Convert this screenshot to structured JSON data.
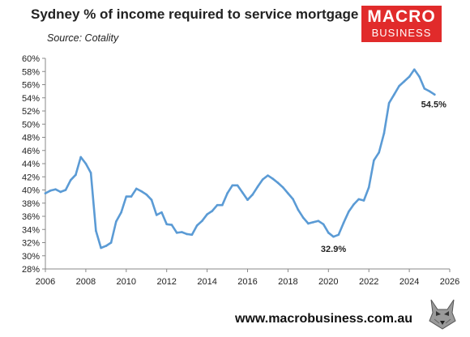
{
  "header": {
    "title": "Sydney % of income required to service mortgage",
    "source": "Source: Cotality"
  },
  "logo": {
    "line1": "MACRO",
    "line2": "BUSINESS",
    "color": "#e12b2b"
  },
  "footer": {
    "url": "www.macrobusiness.com.au"
  },
  "colors": {
    "series": "#5b9bd5",
    "axis": "#888888",
    "text": "#222222"
  },
  "chart_data": {
    "type": "line",
    "title": "Sydney % of income required to service mortgage",
    "xlabel": "",
    "ylabel": "",
    "xlim": [
      2006,
      2026
    ],
    "ylim": [
      28,
      60
    ],
    "x_ticks": [
      "2006",
      "2008",
      "2010",
      "2012",
      "2014",
      "2016",
      "2018",
      "2020",
      "2022",
      "2024",
      "2026"
    ],
    "y_ticks": [
      "28%",
      "30%",
      "32%",
      "34%",
      "36%",
      "38%",
      "40%",
      "42%",
      "44%",
      "46%",
      "48%",
      "50%",
      "52%",
      "54%",
      "56%",
      "58%",
      "60%"
    ],
    "grid": false,
    "legend": "none",
    "series": [
      {
        "x": [
          2006.0,
          2006.25,
          2006.5,
          2006.75,
          2007.0,
          2007.25,
          2007.5,
          2007.75,
          2008.0,
          2008.25,
          2008.5,
          2008.75,
          2009.0,
          2009.25,
          2009.5,
          2009.75,
          2010.0,
          2010.25,
          2010.5,
          2010.75,
          2011.0,
          2011.25,
          2011.5,
          2011.75,
          2012.0,
          2012.25,
          2012.5,
          2012.75,
          2013.0,
          2013.25,
          2013.5,
          2013.75,
          2014.0,
          2014.25,
          2014.5,
          2014.75,
          2015.0,
          2015.25,
          2015.5,
          2015.75,
          2016.0,
          2016.25,
          2016.5,
          2016.75,
          2017.0,
          2017.25,
          2017.5,
          2017.75,
          2018.0,
          2018.25,
          2018.5,
          2018.75,
          2019.0,
          2019.25,
          2019.5,
          2019.75,
          2020.0,
          2020.25,
          2020.5,
          2020.75,
          2021.0,
          2021.25,
          2021.5,
          2021.75,
          2022.0,
          2022.25,
          2022.5,
          2022.75,
          2023.0,
          2023.25,
          2023.5,
          2023.75,
          2024.0,
          2024.25,
          2024.5,
          2024.75,
          2025.0,
          2025.25
        ],
        "values": [
          39.5,
          39.9,
          40.1,
          39.7,
          40.0,
          41.5,
          42.3,
          45.0,
          44.0,
          42.6,
          33.8,
          31.2,
          31.5,
          32.0,
          35.2,
          36.6,
          39.0,
          39.0,
          40.2,
          39.8,
          39.3,
          38.5,
          36.2,
          36.6,
          34.8,
          34.7,
          33.5,
          33.6,
          33.3,
          33.2,
          34.6,
          35.3,
          36.3,
          36.8,
          37.7,
          37.7,
          39.5,
          40.7,
          40.7,
          39.6,
          38.5,
          39.3,
          40.5,
          41.6,
          42.2,
          41.7,
          41.1,
          40.4,
          39.5,
          38.6,
          37.0,
          35.8,
          34.9,
          35.1,
          35.3,
          34.8,
          33.5,
          32.9,
          33.2,
          35.0,
          36.7,
          37.8,
          38.6,
          38.4,
          40.4,
          44.5,
          45.7,
          48.6,
          53.2,
          54.5,
          55.8,
          56.5,
          57.2,
          58.3,
          57.2,
          55.4,
          55.0,
          54.5
        ]
      }
    ],
    "annotations": [
      {
        "text": "54.5%",
        "x": 2025.25,
        "y": 54.5
      },
      {
        "text": "32.9%",
        "x": 2020.25,
        "y": 32.9
      }
    ]
  }
}
